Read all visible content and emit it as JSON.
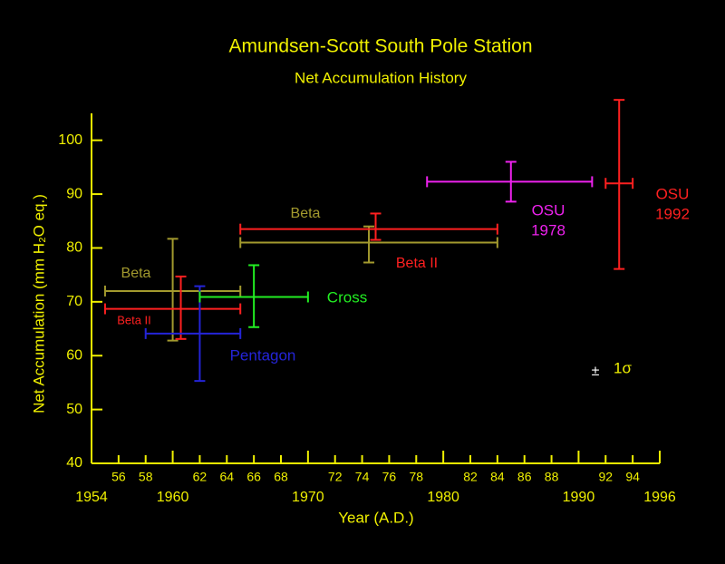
{
  "chart_data": {
    "type": "errorbar",
    "title": "Amundsen-Scott South Pole Station",
    "subtitle": "Net Accumulation History",
    "x_label": "Year (A.D.)",
    "y_label": "Net Accumulation (mm H₂O eq.)",
    "axis_color": "#f0f000",
    "xlim": [
      1954,
      1996
    ],
    "ylim": [
      40,
      105
    ],
    "xticks": [
      1954,
      {
        "value": 1956,
        "label": "56"
      },
      {
        "value": 1958,
        "label": "58"
      },
      1960,
      {
        "value": 1962,
        "label": "62"
      },
      {
        "value": 1964,
        "label": "64"
      },
      {
        "value": 1966,
        "label": "66"
      },
      {
        "value": 1968,
        "label": "68"
      },
      1970,
      {
        "value": 1972,
        "label": "72"
      },
      {
        "value": 1974,
        "label": "74"
      },
      {
        "value": 1976,
        "label": "76"
      },
      {
        "value": 1978,
        "label": "78"
      },
      1980,
      {
        "value": 1982,
        "label": "82"
      },
      {
        "value": 1984,
        "label": "84"
      },
      {
        "value": 1986,
        "label": "86"
      },
      {
        "value": 1988,
        "label": "88"
      },
      1990,
      {
        "value": 1992,
        "label": "92"
      },
      {
        "value": 1994,
        "label": "94"
      },
      1996
    ],
    "yticks": [
      40,
      50,
      60,
      70,
      80,
      90,
      100
    ],
    "series": [
      {
        "label": [
          "Beta"
        ],
        "color": "#a39a2e",
        "x": 1960,
        "y": 72,
        "x_range": [
          1955,
          1965
        ],
        "y_range": [
          62.8,
          81.7
        ]
      },
      {
        "label": [
          "Beta II"
        ],
        "color": "#ff2020",
        "x": 1960.6,
        "y": 68.7,
        "x_range": [
          1955,
          1965
        ],
        "y_range": [
          63.1,
          74.7
        ]
      },
      {
        "label": [
          "Pentagon"
        ],
        "color": "#2424d8",
        "x": 1962,
        "y": 64.1,
        "x_range": [
          1958,
          1965
        ],
        "y_range": [
          55.3,
          72.9
        ]
      },
      {
        "label": [
          "Cross"
        ],
        "color": "#22ee22",
        "x": 1966,
        "y": 70.9,
        "x_range": [
          1962,
          1970
        ],
        "y_range": [
          65.3,
          76.8
        ]
      },
      {
        "label": [
          "Beta"
        ],
        "color": "#a39a2e",
        "x": 1974.5,
        "y": 81,
        "x_range": [
          1965,
          1984
        ],
        "y_range": [
          77.3,
          84
        ]
      },
      {
        "label": [
          "Beta II"
        ],
        "color": "#ff2020",
        "x": 1975,
        "y": 83.5,
        "x_range": [
          1965,
          1984
        ],
        "y_range": [
          81.5,
          86.4
        ]
      },
      {
        "label": [
          "OSU",
          "1978"
        ],
        "color": "#ee22ee",
        "x": 1985,
        "y": 92.3,
        "x_range": [
          1978.8,
          1991
        ],
        "y_range": [
          88.6,
          96
        ]
      },
      {
        "label": [
          "OSU",
          "1992"
        ],
        "color": "#ff2020",
        "x": 1993,
        "y": 92,
        "x_range": [
          1992,
          1994
        ],
        "y_range": [
          76.1,
          107.5
        ]
      }
    ],
    "annotation": {
      "sign": "±",
      "text": "1σ"
    }
  }
}
